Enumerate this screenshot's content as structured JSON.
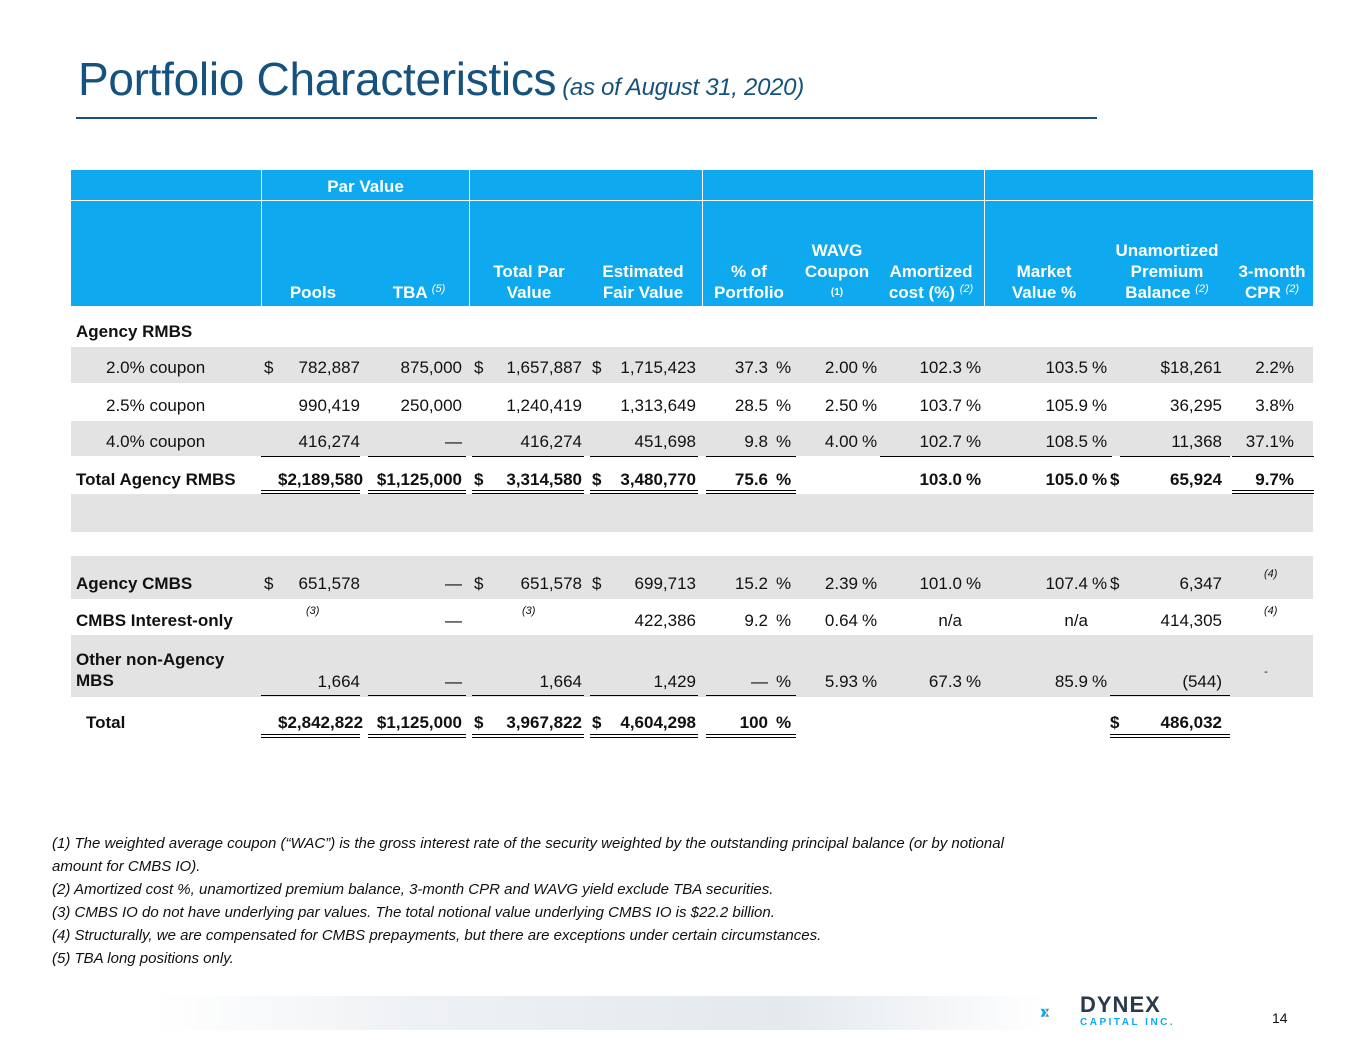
{
  "title": "Portfolio Characteristics",
  "subtitle": "(as of August 31, 2020)",
  "header": {
    "group": "Par Value",
    "pools": "Pools",
    "tba": "TBA",
    "tba_note": "(5)",
    "total_par": [
      "Total Par",
      "Value"
    ],
    "fair_value": [
      "Estimated",
      "Fair Value"
    ],
    "pct_portfolio": [
      "% of",
      "Portfolio"
    ],
    "wavg": [
      "WAVG",
      "Coupon"
    ],
    "wavg_note": "(1)",
    "amortized": [
      "Amortized",
      "cost (%)"
    ],
    "amortized_note": "(2)",
    "market": [
      "Market",
      "Value %"
    ],
    "unamortized": [
      "Unamortized",
      "Premium",
      "Balance"
    ],
    "unamortized_note": "(2)",
    "cpr": [
      "3-month",
      "CPR"
    ],
    "cpr_note": "(2)"
  },
  "section_agency_rmbs": "Agency RMBS",
  "rows": [
    {
      "label": "2.0% coupon",
      "d1": "$",
      "pools": "782,887",
      "tba": "875,000",
      "d2": "$",
      "total": "1,657,887",
      "d3": "$",
      "fair": "1,715,423",
      "pct": "37.3",
      "pct_sign": "%",
      "wavg": "2.00",
      "wavg_sign": "%",
      "amort": "102.3",
      "amort_sign": "%",
      "mkt": "103.5",
      "mkt_sign": "%",
      "d4": "",
      "unam": "$18,261",
      "cpr": "2.2%"
    },
    {
      "label": "2.5% coupon",
      "d1": "",
      "pools": "990,419",
      "tba": "250,000",
      "d2": "",
      "total": "1,240,419",
      "d3": "",
      "fair": "1,313,649",
      "pct": "28.5",
      "pct_sign": "%",
      "wavg": "2.50",
      "wavg_sign": "%",
      "amort": "103.7",
      "amort_sign": "%",
      "mkt": "105.9",
      "mkt_sign": "%",
      "d4": "",
      "unam": "36,295",
      "cpr": "3.8%"
    },
    {
      "label": "4.0% coupon",
      "d1": "",
      "pools": "416,274",
      "tba": "—",
      "d2": "",
      "total": "416,274",
      "d3": "",
      "fair": "451,698",
      "pct": "9.8",
      "pct_sign": "%",
      "wavg": "4.00",
      "wavg_sign": "%",
      "amort": "102.7",
      "amort_sign": "%",
      "mkt": "108.5",
      "mkt_sign": "%",
      "d4": "",
      "unam": "11,368",
      "cpr": "37.1%"
    },
    {
      "label": "Total Agency RMBS",
      "d1": "",
      "pools": "$2,189,580",
      "tba": "$1,125,000",
      "d2": "$",
      "total": "3,314,580",
      "d3": "$",
      "fair": "3,480,770",
      "pct": "75.6",
      "pct_sign": "%",
      "wavg": "",
      "wavg_sign": "",
      "amort": "103.0",
      "amort_sign": "%",
      "mkt": "105.0",
      "mkt_sign": "%",
      "d4": "$",
      "unam": "65,924",
      "cpr": "9.7%"
    },
    {
      "label": "Agency CMBS",
      "d1": "$",
      "pools": "651,578",
      "tba": "—",
      "d2": "$",
      "total": "651,578",
      "d3": "$",
      "fair": "699,713",
      "pct": "15.2",
      "pct_sign": "%",
      "wavg": "2.39",
      "wavg_sign": "%",
      "amort": "101.0",
      "amort_sign": "%",
      "mkt": "107.4",
      "mkt_sign": "%",
      "d4": "$",
      "unam": "6,347",
      "cpr": "",
      "cpr_note": "(4)"
    },
    {
      "label": "CMBS Interest-only",
      "d1": "",
      "pools": "",
      "pools_note": "(3)",
      "tba": "—",
      "d2": "",
      "total": "",
      "total_note": "(3)",
      "d3": "",
      "fair": "422,386",
      "pct": "9.2",
      "pct_sign": "%",
      "wavg": "0.64",
      "wavg_sign": "%",
      "amort": "n/a",
      "amort_sign": "",
      "mkt": "n/a",
      "mkt_sign": "",
      "d4": "",
      "unam": "414,305",
      "cpr": "",
      "cpr_note": "(4)"
    },
    {
      "label": "Other non-Agency MBS",
      "label_lines": [
        "Other non-Agency",
        "MBS"
      ],
      "d1": "",
      "pools": "1,664",
      "tba": "—",
      "d2": "",
      "total": "1,664",
      "d3": "",
      "fair": "1,429",
      "pct": "—",
      "pct_sign": "%",
      "wavg": "5.93",
      "wavg_sign": "%",
      "amort": "67.3",
      "amort_sign": "%",
      "mkt": "85.9",
      "mkt_sign": "%",
      "d4": "",
      "unam": "(544)",
      "cpr": "",
      "cpr_note": "-"
    },
    {
      "label": "Total",
      "d1": "",
      "pools": "$2,842,822",
      "tba": "$1,125,000",
      "d2": "$",
      "total": "3,967,822",
      "d3": "$",
      "fair": "4,604,298",
      "pct": "100",
      "pct_sign": "%",
      "wavg": "",
      "wavg_sign": "",
      "amort": "",
      "amort_sign": "",
      "mkt": "",
      "mkt_sign": "",
      "d4": "$",
      "unam": "486,032",
      "cpr": ""
    }
  ],
  "footnotes": [
    "(1) The weighted average coupon (“WAC”) is the gross interest rate of the security weighted by the outstanding principal balance (or by notional",
    "amount for CMBS IO).",
    "(2) Amortized cost %, unamortized premium balance, 3-month CPR and WAVG yield exclude TBA securities.",
    "(3) CMBS IO do not have underlying par values. The total notional value underlying CMBS IO is $22.2 billion.",
    "(4) Structurally, we are compensated for CMBS prepayments, but there are exceptions under certain circumstances.",
    "(5) TBA long positions only."
  ],
  "logo": {
    "name": "DYNEX",
    "sub": "CAPITAL INC."
  },
  "page_number": "14",
  "colors": {
    "title": "#16527e",
    "header": "#0fa9ef",
    "band": "#e3e3e3"
  }
}
